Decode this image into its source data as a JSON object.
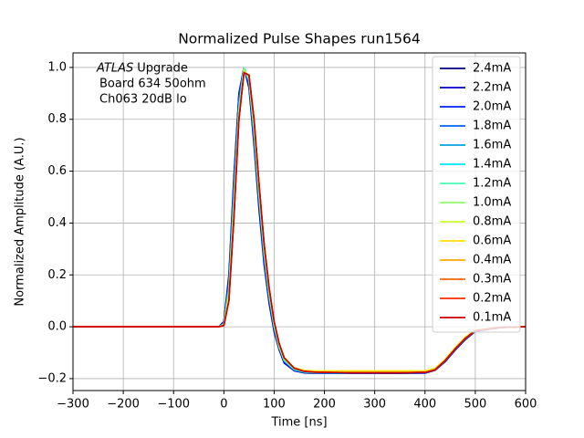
{
  "chart_data": {
    "type": "line",
    "title": "Normalized Pulse Shapes run1564",
    "xlabel": "Time [ns]",
    "ylabel": "Normalized Amplitude (A.U.)",
    "annotations": [
      "ATLAS",
      "Upgrade",
      "Board 634 50ohm",
      "Ch063 20dB lo"
    ],
    "xlim": [
      -300,
      600
    ],
    "ylim": [
      -0.246,
      1.056
    ],
    "xticks": [
      {
        "value": -300,
        "label": "−300"
      },
      {
        "value": -200,
        "label": "−200"
      },
      {
        "value": -100,
        "label": "−100"
      },
      0,
      100,
      200,
      300,
      400,
      500,
      600
    ],
    "yticks": [
      {
        "value": -0.2,
        "label": "−0.2"
      },
      {
        "value": 0,
        "label": "0.0"
      },
      0.2,
      0.4,
      0.6,
      0.8,
      {
        "value": 1,
        "label": "1.0"
      }
    ],
    "grid": true,
    "legend": "upper right",
    "x": [
      -300,
      -200,
      -100,
      -10,
      0,
      10,
      20,
      30,
      40,
      50,
      60,
      70,
      80,
      90,
      100,
      110,
      120,
      140,
      160,
      180,
      200,
      250,
      300,
      350,
      400,
      420,
      440,
      460,
      480,
      500,
      550,
      600
    ],
    "series": [
      {
        "name": "2.4mA",
        "color": "#000080",
        "values": [
          0,
          0,
          0,
          0,
          0.02,
          0.2,
          0.58,
          0.9,
          1.0,
          0.92,
          0.7,
          0.45,
          0.24,
          0.09,
          -0.02,
          -0.09,
          -0.14,
          -0.17,
          -0.178,
          -0.18,
          -0.18,
          -0.18,
          -0.18,
          -0.18,
          -0.179,
          -0.168,
          -0.135,
          -0.09,
          -0.05,
          -0.018,
          -0.003,
          0
        ]
      },
      {
        "name": "2.2mA",
        "color": "#0000cd",
        "values": [
          0,
          0,
          0,
          0,
          0.02,
          0.19,
          0.57,
          0.9,
          1.0,
          0.93,
          0.71,
          0.46,
          0.25,
          0.095,
          -0.015,
          -0.088,
          -0.138,
          -0.169,
          -0.177,
          -0.179,
          -0.179,
          -0.179,
          -0.179,
          -0.179,
          -0.178,
          -0.167,
          -0.134,
          -0.089,
          -0.049,
          -0.017,
          -0.003,
          0
        ]
      },
      {
        "name": "2.0mA",
        "color": "#0020ff",
        "values": [
          0,
          0,
          0,
          0,
          0.015,
          0.18,
          0.55,
          0.89,
          1.0,
          0.93,
          0.72,
          0.47,
          0.26,
          0.1,
          -0.01,
          -0.085,
          -0.135,
          -0.168,
          -0.176,
          -0.179,
          -0.179,
          -0.179,
          -0.179,
          -0.178,
          -0.177,
          -0.166,
          -0.133,
          -0.088,
          -0.048,
          -0.017,
          -0.003,
          0
        ]
      },
      {
        "name": "1.8mA",
        "color": "#0064ff",
        "values": [
          0,
          0,
          0,
          0,
          0.015,
          0.17,
          0.53,
          0.88,
          1.0,
          0.94,
          0.73,
          0.48,
          0.27,
          0.11,
          -0.005,
          -0.083,
          -0.133,
          -0.167,
          -0.176,
          -0.178,
          -0.178,
          -0.178,
          -0.178,
          -0.178,
          -0.177,
          -0.166,
          -0.132,
          -0.087,
          -0.047,
          -0.016,
          -0.002,
          0
        ]
      },
      {
        "name": "1.6mA",
        "color": "#00a4de",
        "values": [
          0,
          0,
          0,
          0,
          0.01,
          0.15,
          0.5,
          0.85,
          1.0,
          0.95,
          0.75,
          0.5,
          0.28,
          0.12,
          0,
          -0.08,
          -0.13,
          -0.165,
          -0.175,
          -0.178,
          -0.178,
          -0.178,
          -0.177,
          -0.177,
          -0.176,
          -0.165,
          -0.13,
          -0.085,
          -0.045,
          -0.015,
          -0.002,
          0
        ]
      },
      {
        "name": "1.4mA",
        "color": "#00e4f8",
        "values": [
          0,
          0,
          0,
          0,
          0.01,
          0.15,
          0.5,
          0.85,
          1.0,
          0.95,
          0.75,
          0.5,
          0.28,
          0.12,
          0,
          -0.08,
          -0.13,
          -0.165,
          -0.174,
          -0.177,
          -0.177,
          -0.177,
          -0.176,
          -0.176,
          -0.175,
          -0.164,
          -0.129,
          -0.084,
          -0.044,
          -0.015,
          -0.002,
          0
        ]
      },
      {
        "name": "1.2mA",
        "color": "#46ffb0",
        "values": [
          0,
          0,
          0,
          0,
          0.01,
          0.14,
          0.49,
          0.84,
          1.0,
          0.95,
          0.76,
          0.51,
          0.29,
          0.125,
          0.005,
          -0.077,
          -0.128,
          -0.163,
          -0.173,
          -0.176,
          -0.176,
          -0.176,
          -0.175,
          -0.175,
          -0.174,
          -0.163,
          -0.128,
          -0.083,
          -0.043,
          -0.014,
          -0.002,
          0
        ]
      },
      {
        "name": "1.0mA",
        "color": "#8aff6c",
        "values": [
          0,
          0,
          0,
          0,
          0.01,
          0.13,
          0.47,
          0.83,
          0.99,
          0.96,
          0.77,
          0.52,
          0.3,
          0.13,
          0.01,
          -0.074,
          -0.126,
          -0.162,
          -0.172,
          -0.175,
          -0.175,
          -0.175,
          -0.174,
          -0.174,
          -0.173,
          -0.162,
          -0.127,
          -0.082,
          -0.042,
          -0.014,
          -0.002,
          0
        ]
      },
      {
        "name": "0.8mA",
        "color": "#cdff29",
        "values": [
          0,
          0,
          0,
          0,
          0.008,
          0.12,
          0.45,
          0.82,
          0.99,
          0.96,
          0.78,
          0.53,
          0.31,
          0.14,
          0.015,
          -0.07,
          -0.123,
          -0.16,
          -0.17,
          -0.172,
          -0.172,
          -0.172,
          -0.172,
          -0.172,
          -0.172,
          -0.161,
          -0.126,
          -0.081,
          -0.041,
          -0.013,
          -0.002,
          0
        ]
      },
      {
        "name": "0.6mA",
        "color": "#ffe500",
        "values": [
          0,
          0,
          0,
          0,
          0.006,
          0.11,
          0.43,
          0.81,
          0.98,
          0.97,
          0.79,
          0.54,
          0.32,
          0.15,
          0.02,
          -0.066,
          -0.12,
          -0.158,
          -0.168,
          -0.17,
          -0.17,
          -0.17,
          -0.17,
          -0.17,
          -0.17,
          -0.16,
          -0.125,
          -0.08,
          -0.04,
          -0.013,
          -0.002,
          0
        ]
      },
      {
        "name": "0.4mA",
        "color": "#ffa800",
        "values": [
          0,
          0,
          0,
          0,
          0.005,
          0.1,
          0.42,
          0.8,
          0.98,
          0.97,
          0.8,
          0.55,
          0.32,
          0.15,
          0.02,
          -0.065,
          -0.12,
          -0.16,
          -0.172,
          -0.175,
          -0.176,
          -0.177,
          -0.177,
          -0.177,
          -0.176,
          -0.166,
          -0.13,
          -0.085,
          -0.045,
          -0.015,
          -0.002,
          0
        ]
      },
      {
        "name": "0.3mA",
        "color": "#ff6600",
        "values": [
          0,
          0,
          0,
          0,
          0.005,
          0.1,
          0.42,
          0.8,
          0.98,
          0.97,
          0.8,
          0.55,
          0.32,
          0.15,
          0.02,
          -0.065,
          -0.12,
          -0.16,
          -0.172,
          -0.175,
          -0.176,
          -0.177,
          -0.177,
          -0.177,
          -0.176,
          -0.166,
          -0.13,
          -0.085,
          -0.045,
          -0.015,
          -0.002,
          0
        ]
      },
      {
        "name": "0.2mA",
        "color": "#ff2900",
        "values": [
          0,
          0,
          0,
          0,
          0.005,
          0.1,
          0.42,
          0.8,
          0.98,
          0.97,
          0.8,
          0.55,
          0.32,
          0.15,
          0.02,
          -0.065,
          -0.12,
          -0.16,
          -0.172,
          -0.175,
          -0.176,
          -0.177,
          -0.177,
          -0.177,
          -0.176,
          -0.166,
          -0.13,
          -0.085,
          -0.045,
          -0.015,
          -0.002,
          0
        ]
      },
      {
        "name": "0.1mA",
        "color": "#cc0000",
        "values": [
          0,
          0,
          0,
          0,
          0.005,
          0.1,
          0.42,
          0.8,
          0.98,
          0.97,
          0.8,
          0.55,
          0.32,
          0.15,
          0.02,
          -0.065,
          -0.12,
          -0.16,
          -0.172,
          -0.175,
          -0.176,
          -0.177,
          -0.177,
          -0.177,
          -0.176,
          -0.166,
          -0.13,
          -0.085,
          -0.045,
          -0.015,
          -0.002,
          0
        ]
      }
    ]
  }
}
